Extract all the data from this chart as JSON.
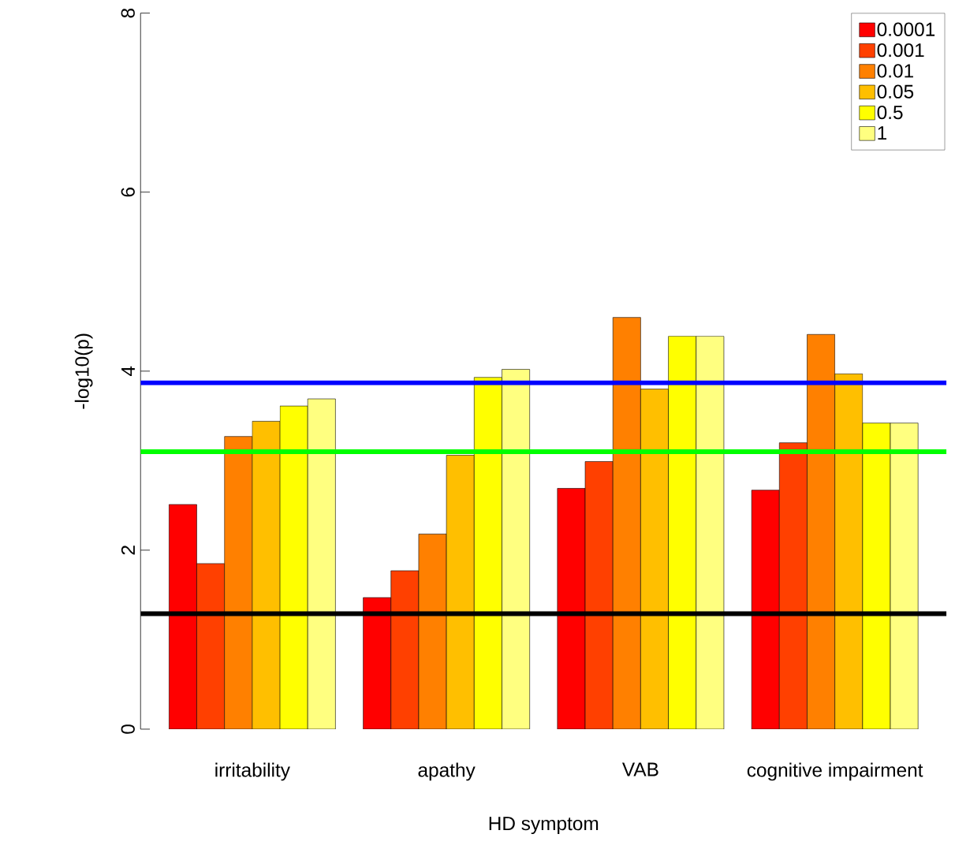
{
  "chart_data": {
    "type": "bar",
    "xlabel": "HD symptom",
    "ylabel": "-log10(p)",
    "categories": [
      "irritability",
      "apathy",
      "VAB",
      "cognitive impairment"
    ],
    "series": [
      {
        "name": "0.0001",
        "color": "#ff0000",
        "values": [
          2.51,
          1.47,
          2.69,
          2.67
        ]
      },
      {
        "name": "0.001",
        "color": "#ff4000",
        "values": [
          1.85,
          1.77,
          2.99,
          3.2
        ]
      },
      {
        "name": "0.01",
        "color": "#ff8000",
        "values": [
          3.27,
          2.18,
          4.6,
          4.41
        ]
      },
      {
        "name": "0.05",
        "color": "#ffbf00",
        "values": [
          3.44,
          3.06,
          3.8,
          3.97
        ]
      },
      {
        "name": "0.5",
        "color": "#ffff00",
        "values": [
          3.61,
          3.93,
          4.39,
          3.42
        ]
      },
      {
        "name": "1",
        "color": "#ffff80",
        "values": [
          3.69,
          4.02,
          4.39,
          3.42
        ]
      }
    ],
    "ylim": [
      0,
      8
    ],
    "yticks": [
      0,
      2,
      4,
      6,
      8
    ],
    "grid": false,
    "legend": "top right",
    "ref_lines": [
      {
        "axis": "y",
        "value": 3.87,
        "color": "#0000ff"
      },
      {
        "axis": "y",
        "value": 3.1,
        "color": "#00ff00"
      },
      {
        "axis": "y",
        "value": 1.29,
        "color": "#000000"
      }
    ]
  }
}
